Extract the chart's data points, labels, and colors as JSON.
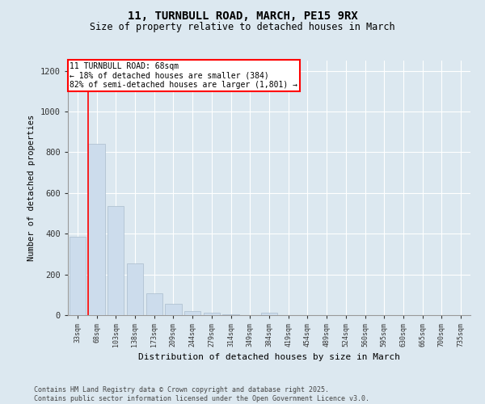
{
  "title_line1": "11, TURNBULL ROAD, MARCH, PE15 9RX",
  "title_line2": "Size of property relative to detached houses in March",
  "xlabel": "Distribution of detached houses by size in March",
  "ylabel": "Number of detached properties",
  "categories": [
    "33sqm",
    "68sqm",
    "103sqm",
    "138sqm",
    "173sqm",
    "209sqm",
    "244sqm",
    "279sqm",
    "314sqm",
    "349sqm",
    "384sqm",
    "419sqm",
    "454sqm",
    "489sqm",
    "524sqm",
    "560sqm",
    "595sqm",
    "630sqm",
    "665sqm",
    "700sqm",
    "735sqm"
  ],
  "values": [
    384,
    840,
    535,
    255,
    108,
    55,
    18,
    12,
    5,
    0,
    13,
    0,
    0,
    0,
    0,
    0,
    0,
    0,
    0,
    0,
    0
  ],
  "bar_color": "#ccdcec",
  "bar_edge_color": "#aabccc",
  "red_line_index": 1,
  "annotation_title": "11 TURNBULL ROAD: 68sqm",
  "annotation_line2": "← 18% of detached houses are smaller (384)",
  "annotation_line3": "82% of semi-detached houses are larger (1,801) →",
  "ylim": [
    0,
    1250
  ],
  "yticks": [
    0,
    200,
    400,
    600,
    800,
    1000,
    1200
  ],
  "background_color": "#dce8f0",
  "plot_bg_color": "#dce8f0",
  "grid_color": "#ffffff",
  "footer_line1": "Contains HM Land Registry data © Crown copyright and database right 2025.",
  "footer_line2": "Contains public sector information licensed under the Open Government Licence v3.0."
}
